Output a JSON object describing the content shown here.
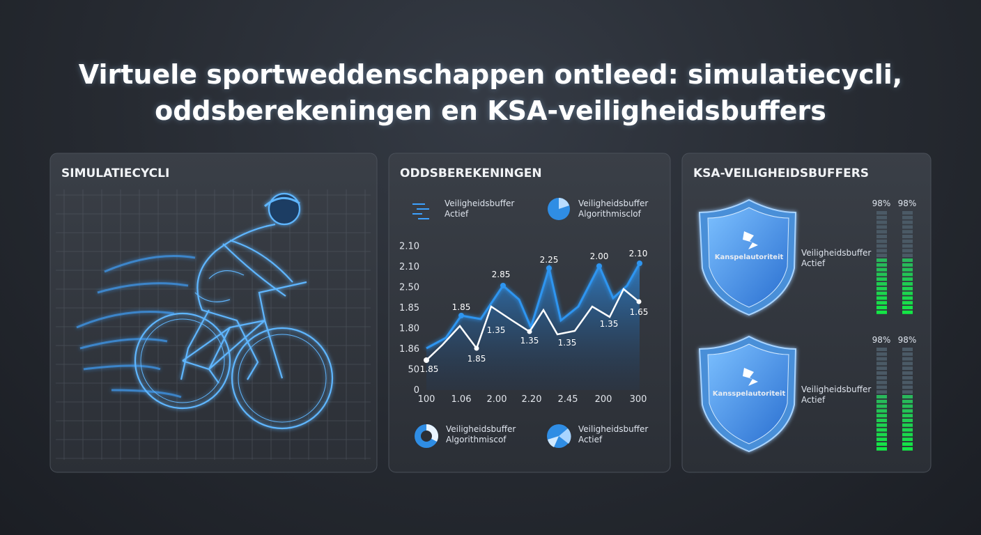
{
  "title": [
    "Virtuele sportweddenschappen ontleed: simulatiecycli,",
    "oddsberekeningen en KSA-veiligheidsbuffers"
  ],
  "panels": [
    {
      "heading": "SIMULATIECYCLI"
    },
    {
      "heading": "ODDSBEREKENINGEN",
      "legend_top": [
        [
          "Veiligheidsbuffer",
          "Actief"
        ],
        [
          "Veiligheidsbuffer",
          "Algorithmisclof"
        ]
      ],
      "chart": {
        "y_labels": [
          "2.10",
          "2.10",
          "2.50",
          "1.85",
          "1.80",
          "1.86",
          "50",
          "0"
        ],
        "x_labels": [
          "100",
          "1.06",
          "2.00",
          "2.20",
          "2.45",
          "200",
          "300"
        ],
        "point_labels": [
          "1.85",
          "1.85",
          "2.85",
          "1.35",
          "1.85",
          "2.25",
          "1.35",
          "1.35",
          "2.00",
          "1.35",
          "2.10",
          "1.65"
        ]
      },
      "legend_bottom": [
        [
          "Veiligheidsbuffer",
          "Algorithmiscof"
        ],
        [
          "Veiligheidsbuffer",
          "Actief"
        ]
      ]
    },
    {
      "heading": "KSA-VEILIGHEIDSBUFFERS",
      "shields": [
        {
          "logo": "Kanspelautoriteit",
          "label": [
            "Veiligheidsbuffer",
            "Actief"
          ],
          "meters": [
            "98%",
            "98%"
          ]
        },
        {
          "logo": "Kansspelautoriteit",
          "label": [
            "Veiligheidsbuffer",
            "Actief"
          ],
          "meters": [
            "98%",
            "98%"
          ]
        }
      ]
    }
  ]
}
